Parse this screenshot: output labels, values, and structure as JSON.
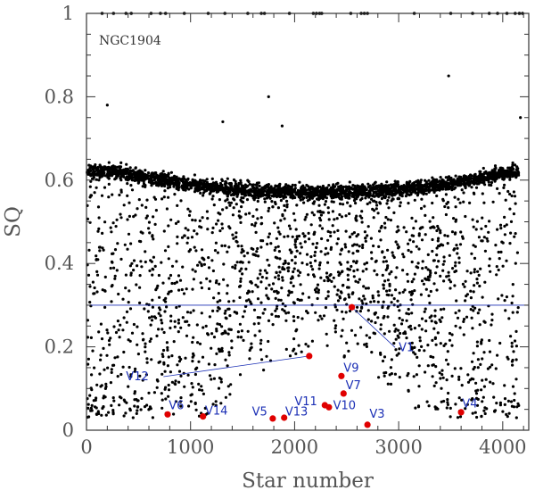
{
  "chart_data": {
    "type": "scatter",
    "annotation": "NGC1904",
    "xlabel": "Star number",
    "ylabel": "SQ",
    "xlim": [
      0,
      4250
    ],
    "ylim": [
      0,
      1
    ],
    "x_ticks": [
      0,
      1000,
      2000,
      3000,
      4000
    ],
    "y_ticks": [
      0,
      0.2,
      0.4,
      0.6,
      0.8,
      1
    ],
    "y_tick_labels": [
      "0",
      "0.2",
      "0.4",
      "0.6",
      "0.8",
      "1"
    ],
    "threshold_line": 0.3,
    "grid": false,
    "colors": {
      "field_stars": "#000000",
      "variables": "#e00000",
      "labels": "#1b2fb5",
      "threshold": "#1b2fb5"
    },
    "approx_field_star_count": 4200,
    "saturated_points_x": [
      150,
      260,
      380,
      430,
      620,
      710,
      760,
      940,
      1170,
      1330,
      1550,
      1680,
      1710,
      1950,
      2180,
      2210,
      2240,
      2260,
      2540,
      2640,
      2670,
      2700,
      3150,
      3500,
      3710,
      3870,
      3950,
      4040,
      4120,
      4160,
      4190
    ],
    "variables": [
      {
        "name": "V1",
        "x": 2550,
        "y": 0.295,
        "label_x": 3000,
        "label_y": 0.19,
        "leader": true
      },
      {
        "name": "V3",
        "x": 2700,
        "y": 0.013,
        "label_x": 2720,
        "label_y": 0.03,
        "leader": false
      },
      {
        "name": "V4",
        "x": 3600,
        "y": 0.043,
        "label_x": 3610,
        "label_y": 0.055,
        "leader": false
      },
      {
        "name": "V5",
        "x": 1790,
        "y": 0.028,
        "label_x": 1590,
        "label_y": 0.035,
        "leader": false
      },
      {
        "name": "V6",
        "x": 780,
        "y": 0.038,
        "label_x": 790,
        "label_y": 0.05,
        "leader": false
      },
      {
        "name": "V7",
        "x": 2470,
        "y": 0.088,
        "label_x": 2490,
        "label_y": 0.098,
        "leader": false
      },
      {
        "name": "V9",
        "x": 2450,
        "y": 0.13,
        "label_x": 2470,
        "label_y": 0.14,
        "leader": false
      },
      {
        "name": "V10",
        "x": 2330,
        "y": 0.055,
        "label_x": 2370,
        "label_y": 0.05,
        "leader": false
      },
      {
        "name": "V11",
        "x": 2290,
        "y": 0.06,
        "label_x": 2000,
        "label_y": 0.06,
        "leader": false
      },
      {
        "name": "V12",
        "x": 2140,
        "y": 0.178,
        "label_x": 380,
        "label_y": 0.12,
        "leader": true
      },
      {
        "name": "V13",
        "x": 1900,
        "y": 0.03,
        "label_x": 1910,
        "label_y": 0.035,
        "leader": false
      },
      {
        "name": "V14",
        "x": 1120,
        "y": 0.033,
        "label_x": 1140,
        "label_y": 0.038,
        "leader": false
      }
    ]
  }
}
